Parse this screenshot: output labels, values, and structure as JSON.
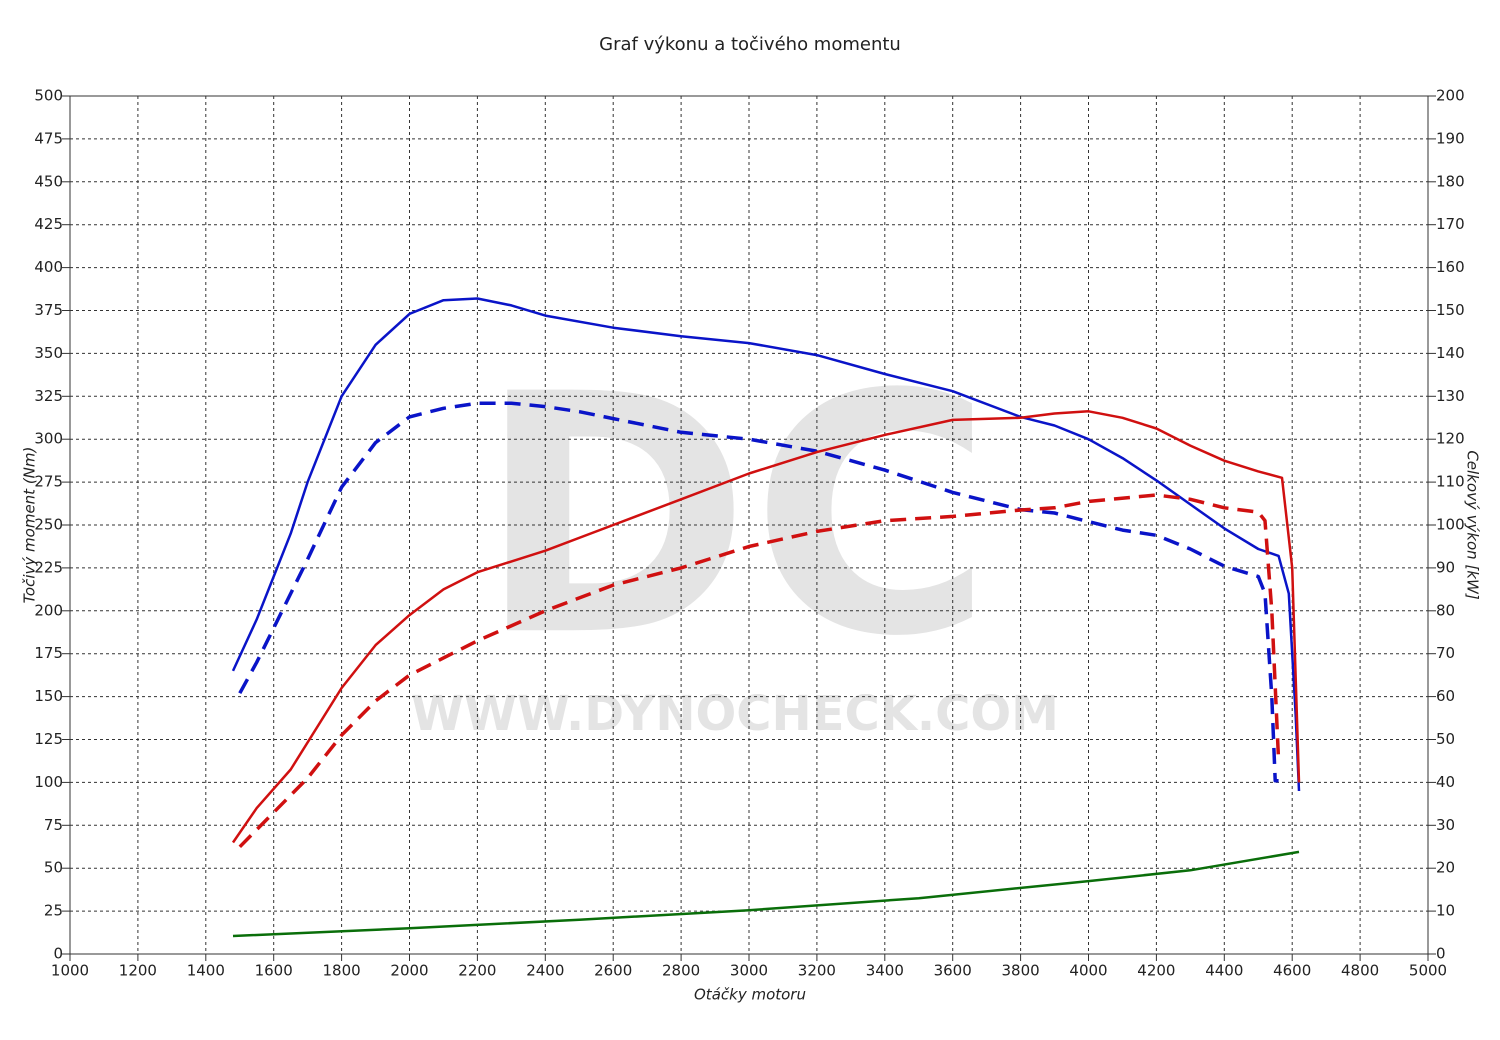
{
  "chart_data": {
    "type": "line",
    "title": "Graf výkonu a točivého momentu",
    "watermark": [
      "DC",
      "WWW.DYNOCHECK.COM"
    ],
    "x_label": "Otáčky motoru",
    "y_label": "Točivý moment (Nm)",
    "y2_label": "Celkový výkon [kW]",
    "xlim": [
      1000,
      5000
    ],
    "xticks": [
      1000,
      1200,
      1400,
      1600,
      1800,
      2000,
      2200,
      2400,
      2600,
      2800,
      3000,
      3200,
      3400,
      3600,
      3800,
      4000,
      4200,
      4400,
      4600,
      4800,
      5000
    ],
    "ylim": [
      0,
      500
    ],
    "yticks": [
      0,
      25,
      50,
      75,
      100,
      125,
      150,
      175,
      200,
      225,
      250,
      275,
      300,
      325,
      350,
      375,
      400,
      425,
      450,
      475,
      500
    ],
    "y2lim": [
      0,
      200
    ],
    "y2ticks": [
      0,
      10,
      20,
      30,
      40,
      50,
      60,
      70,
      80,
      90,
      100,
      110,
      120,
      130,
      140,
      150,
      160,
      170,
      180,
      190,
      200
    ],
    "grid": true,
    "series": [
      {
        "color": "#0a14c8",
        "dash": false,
        "axis": "y",
        "x": [
          1480,
          1550,
          1600,
          1650,
          1700,
          1800,
          1900,
          2000,
          2100,
          2200,
          2300,
          2400,
          2600,
          2800,
          3000,
          3200,
          3400,
          3600,
          3800,
          3900,
          4000,
          4100,
          4200,
          4300,
          4400,
          4500,
          4560,
          4590,
          4610,
          4620
        ],
        "values": [
          165,
          195,
          220,
          245,
          275,
          325,
          355,
          373,
          381,
          382,
          378,
          372,
          365,
          360,
          356,
          349,
          338,
          328,
          313,
          308,
          300,
          289,
          276,
          262,
          248,
          236,
          232,
          210,
          140,
          95
        ]
      },
      {
        "color": "#0a14c8",
        "dash": true,
        "axis": "y",
        "x": [
          1500,
          1550,
          1600,
          1700,
          1800,
          1900,
          2000,
          2100,
          2200,
          2300,
          2400,
          2500,
          2600,
          2800,
          3000,
          3200,
          3400,
          3600,
          3800,
          3900,
          4000,
          4100,
          4200,
          4300,
          4400,
          4500,
          4520,
          4540,
          4550,
          4560
        ],
        "values": [
          152,
          170,
          190,
          230,
          272,
          298,
          313,
          318,
          321,
          321,
          319,
          316,
          312,
          304,
          300,
          293,
          282,
          269,
          259,
          257,
          252,
          247,
          244,
          236,
          226,
          220,
          210,
          150,
          101,
          101
        ]
      },
      {
        "color": "#d01010",
        "dash": false,
        "axis": "y2",
        "x": [
          1480,
          1550,
          1650,
          1800,
          1900,
          2000,
          2100,
          2200,
          2400,
          2600,
          2800,
          3000,
          3200,
          3400,
          3600,
          3800,
          3900,
          4000,
          4100,
          4200,
          4300,
          4400,
          4500,
          4570,
          4600,
          4620
        ],
        "values": [
          26,
          34,
          43,
          62,
          72,
          79,
          85,
          89,
          94,
          100,
          106,
          112,
          117,
          121,
          124.5,
          125,
          126,
          126.5,
          125,
          122.5,
          118.5,
          115,
          112.5,
          111,
          90,
          40
        ]
      },
      {
        "color": "#d01010",
        "dash": true,
        "axis": "y2",
        "x": [
          1500,
          1600,
          1700,
          1800,
          1900,
          2000,
          2200,
          2400,
          2600,
          2800,
          3000,
          3200,
          3400,
          3600,
          3800,
          3900,
          4000,
          4200,
          4300,
          4400,
          4500,
          4520,
          4540,
          4560
        ],
        "values": [
          25,
          33,
          41,
          51,
          59,
          65,
          73,
          80,
          86,
          90,
          95,
          98.5,
          101,
          102,
          103.5,
          104,
          105.5,
          107,
          106,
          104,
          103,
          101,
          80,
          45
        ]
      },
      {
        "color": "#0a6e0a",
        "dash": false,
        "axis": "y2",
        "x": [
          1480,
          2000,
          2500,
          3000,
          3500,
          4000,
          4300,
          4620
        ],
        "values": [
          4.2,
          6,
          8,
          10.2,
          13,
          17,
          19.5,
          23.8
        ]
      }
    ]
  }
}
